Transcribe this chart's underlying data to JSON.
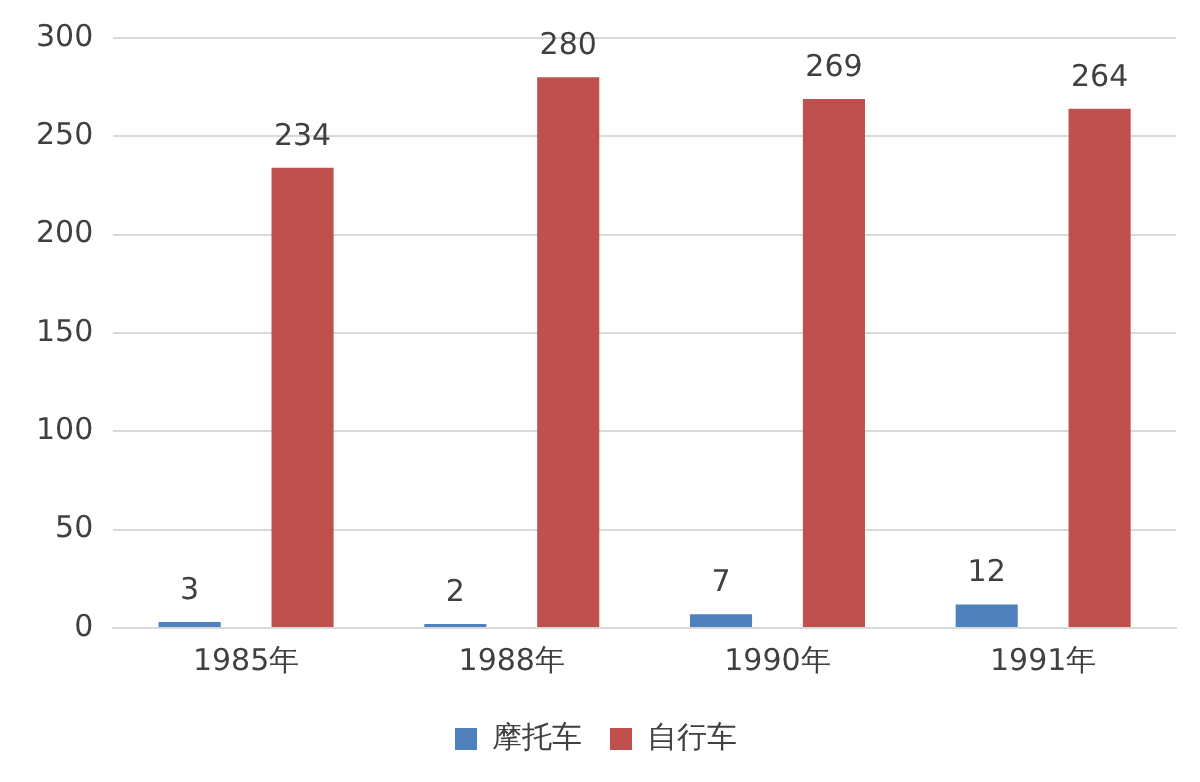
{
  "chart_data": {
    "type": "bar",
    "categories": [
      "1985年",
      "1988年",
      "1990年",
      "1991年"
    ],
    "series": [
      {
        "name": "摩托车",
        "color": "#4f81bd",
        "values": [
          3,
          2,
          7,
          12
        ]
      },
      {
        "name": "自行车",
        "color": "#c0504d",
        "values": [
          234,
          280,
          269,
          264
        ]
      }
    ],
    "ylim": [
      0,
      300
    ],
    "yticks": [
      0,
      50,
      100,
      150,
      200,
      250,
      300
    ],
    "grid": "y",
    "legend": "bottom",
    "data_labels": true
  }
}
